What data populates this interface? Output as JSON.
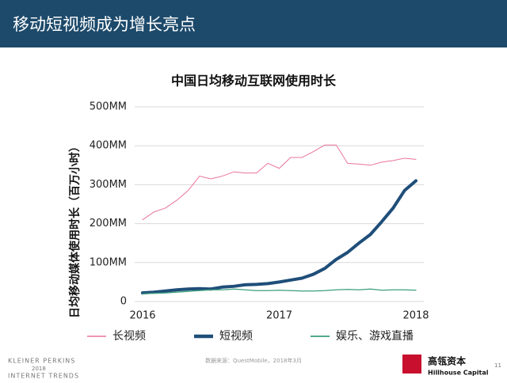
{
  "header": {
    "title": "移动短视频成为增长亮点"
  },
  "chart_data": {
    "type": "line",
    "title": "中国日均移动互联网使用时长",
    "y_label": "日均移动媒体使用时长（百万小时）",
    "categories": [
      "2016",
      null,
      null,
      null,
      null,
      null,
      null,
      null,
      null,
      null,
      null,
      null,
      "2017",
      null,
      null,
      null,
      null,
      null,
      null,
      null,
      null,
      null,
      null,
      null,
      "2018"
    ],
    "series": [
      {
        "name": "长视频",
        "color": "#e8749c",
        "width": 1,
        "values": [
          210,
          230,
          240,
          260,
          285,
          322,
          315,
          322,
          333,
          330,
          330,
          355,
          342,
          370,
          370,
          385,
          402,
          402,
          355,
          353,
          350,
          358,
          362,
          368,
          365
        ]
      },
      {
        "name": "短视频",
        "color": "#1f4e79",
        "width": 4,
        "values": [
          22,
          24,
          27,
          30,
          32,
          33,
          32,
          37,
          39,
          43,
          44,
          46,
          50,
          55,
          60,
          70,
          85,
          108,
          126,
          150,
          172,
          205,
          240,
          285,
          310
        ]
      },
      {
        "name": "娱乐、游戏直播",
        "color": "#3a9e7c",
        "width": 1.3,
        "values": [
          20,
          21,
          22,
          24,
          26,
          28,
          30,
          30,
          32,
          30,
          28,
          28,
          29,
          28,
          27,
          27,
          28,
          30,
          31,
          30,
          32,
          29,
          30,
          30,
          29
        ]
      }
    ],
    "ylim": [
      0,
      500
    ],
    "yticks": [
      0,
      {
        "value": 100,
        "label": "100MM"
      },
      {
        "value": 200,
        "label": "200MM"
      },
      {
        "value": 300,
        "label": "300MM"
      },
      {
        "value": 400,
        "label": "400MM"
      },
      {
        "value": 500,
        "label": "500MM"
      }
    ],
    "grid": true
  },
  "footer": {
    "brand": [
      "KLEINER PERKINS",
      "2018",
      "INTERNET TRENDS"
    ],
    "source": "数据来源：QuestMobile，2018年3月",
    "logo_cn": "高瓴资本",
    "logo_en": "Hillhouse Capital",
    "page": "11"
  }
}
